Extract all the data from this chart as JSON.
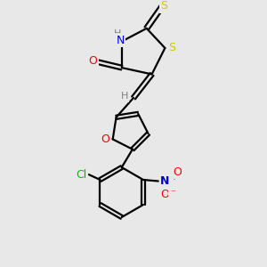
{
  "bg_color": "#e8e8e8",
  "bond_color": "#000000",
  "atom_colors": {
    "S": "#cccc00",
    "O": "#ff0000",
    "N_blue": "#0000cc",
    "Cl": "#00bb00",
    "H": "#808080"
  },
  "figsize": [
    3.0,
    3.0
  ],
  "dpi": 100,
  "xlim": [
    0,
    10
  ],
  "ylim": [
    0,
    10
  ]
}
